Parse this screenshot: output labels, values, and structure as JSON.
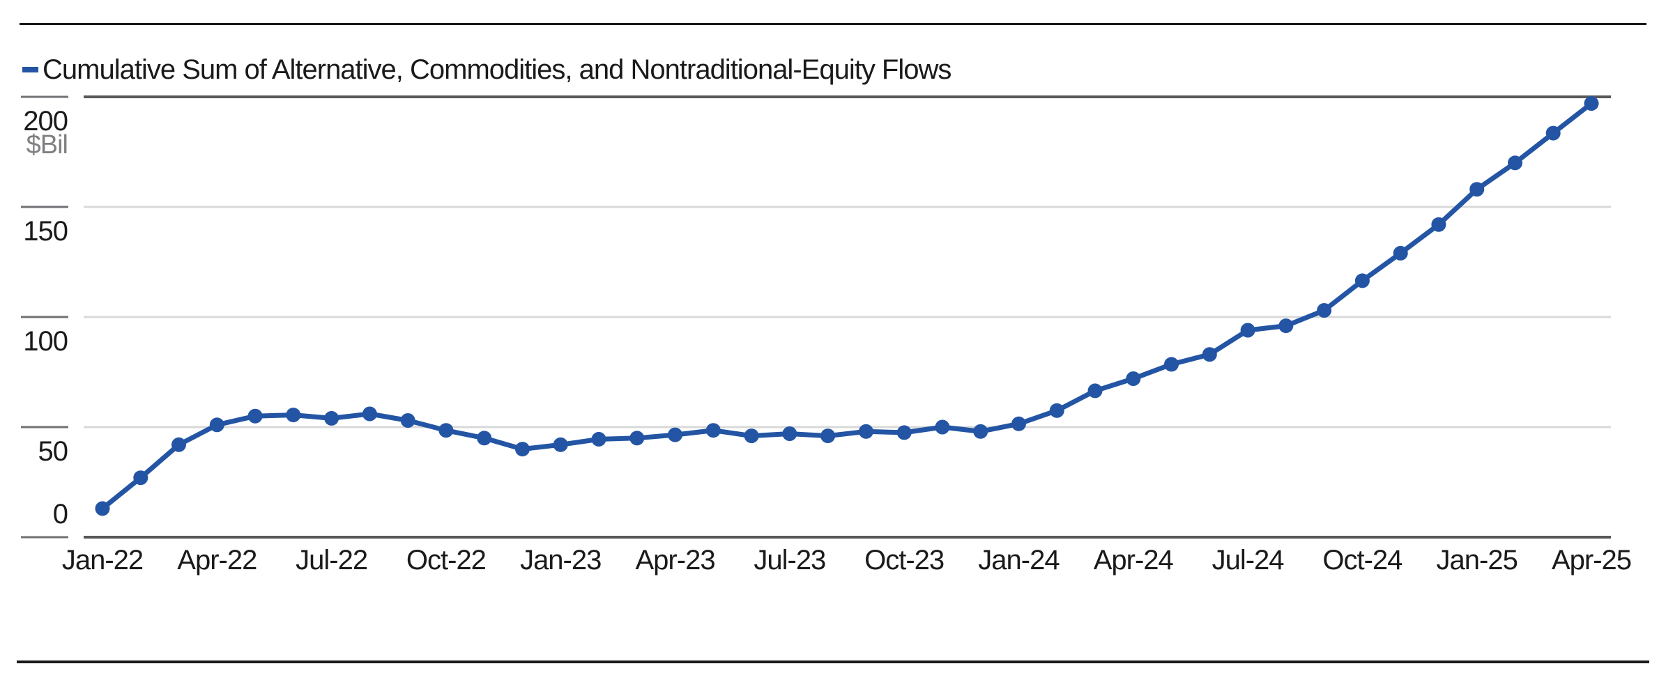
{
  "legend": {
    "label": "Cumulative Sum of Alternative, Commodities, and Nontraditional-Equity Flows",
    "swatch_color": "#2355a4"
  },
  "y_axis": {
    "unit_label": "$Bil",
    "tick_labels": [
      "200",
      "150",
      "100",
      "50",
      "0"
    ],
    "tick_values": [
      200,
      150,
      100,
      50,
      0
    ]
  },
  "x_axis": {
    "shown_labels": [
      "Jan-22",
      "Apr-22",
      "Jul-22",
      "Oct-22",
      "Jan-23",
      "Apr-23",
      "Jul-23",
      "Oct-23",
      "Jan-24",
      "Apr-24",
      "Jul-24",
      "Oct-24",
      "Jan-25",
      "Apr-25"
    ],
    "label_step": 3
  },
  "colors": {
    "line": "#2355a4",
    "grid_light": "#d9d9d9",
    "grid_dark": "#58585a",
    "tick": "#707174",
    "rule": "#1a1a1a",
    "unit_text": "#808083",
    "text": "#1a1a1a"
  },
  "chart_data": {
    "type": "line",
    "title": "Cumulative Sum of Alternative, Commodities, and Nontraditional-Equity Flows",
    "xlabel": "",
    "ylabel": "$Bil",
    "ylim": [
      0,
      200
    ],
    "grid": "horizontal",
    "legend_position": "top-left",
    "marker": "circle",
    "x": [
      "Jan-22",
      "Feb-22",
      "Mar-22",
      "Apr-22",
      "May-22",
      "Jun-22",
      "Jul-22",
      "Aug-22",
      "Sep-22",
      "Oct-22",
      "Nov-22",
      "Dec-22",
      "Jan-23",
      "Feb-23",
      "Mar-23",
      "Apr-23",
      "May-23",
      "Jun-23",
      "Jul-23",
      "Aug-23",
      "Sep-23",
      "Oct-23",
      "Nov-23",
      "Dec-23",
      "Jan-24",
      "Feb-24",
      "Mar-24",
      "Apr-24",
      "May-24",
      "Jun-24",
      "Jul-24",
      "Aug-24",
      "Sep-24",
      "Oct-24",
      "Nov-24",
      "Dec-24",
      "Jan-25",
      "Feb-25",
      "Mar-25",
      "Apr-25"
    ],
    "series": [
      {
        "name": "Cumulative Sum of Alternative, Commodities, and Nontraditional-Equity Flows",
        "values": [
          13,
          27,
          42,
          51,
          55,
          55.5,
          54,
          56,
          53,
          48.5,
          45,
          40,
          42,
          44.5,
          45,
          46.5,
          48.5,
          46,
          47,
          46,
          48,
          47.5,
          50,
          48,
          51.5,
          57.5,
          66.5,
          72,
          78.5,
          83,
          94,
          96,
          103,
          116.5,
          129,
          142,
          158,
          170,
          183.5,
          197
        ]
      }
    ]
  }
}
